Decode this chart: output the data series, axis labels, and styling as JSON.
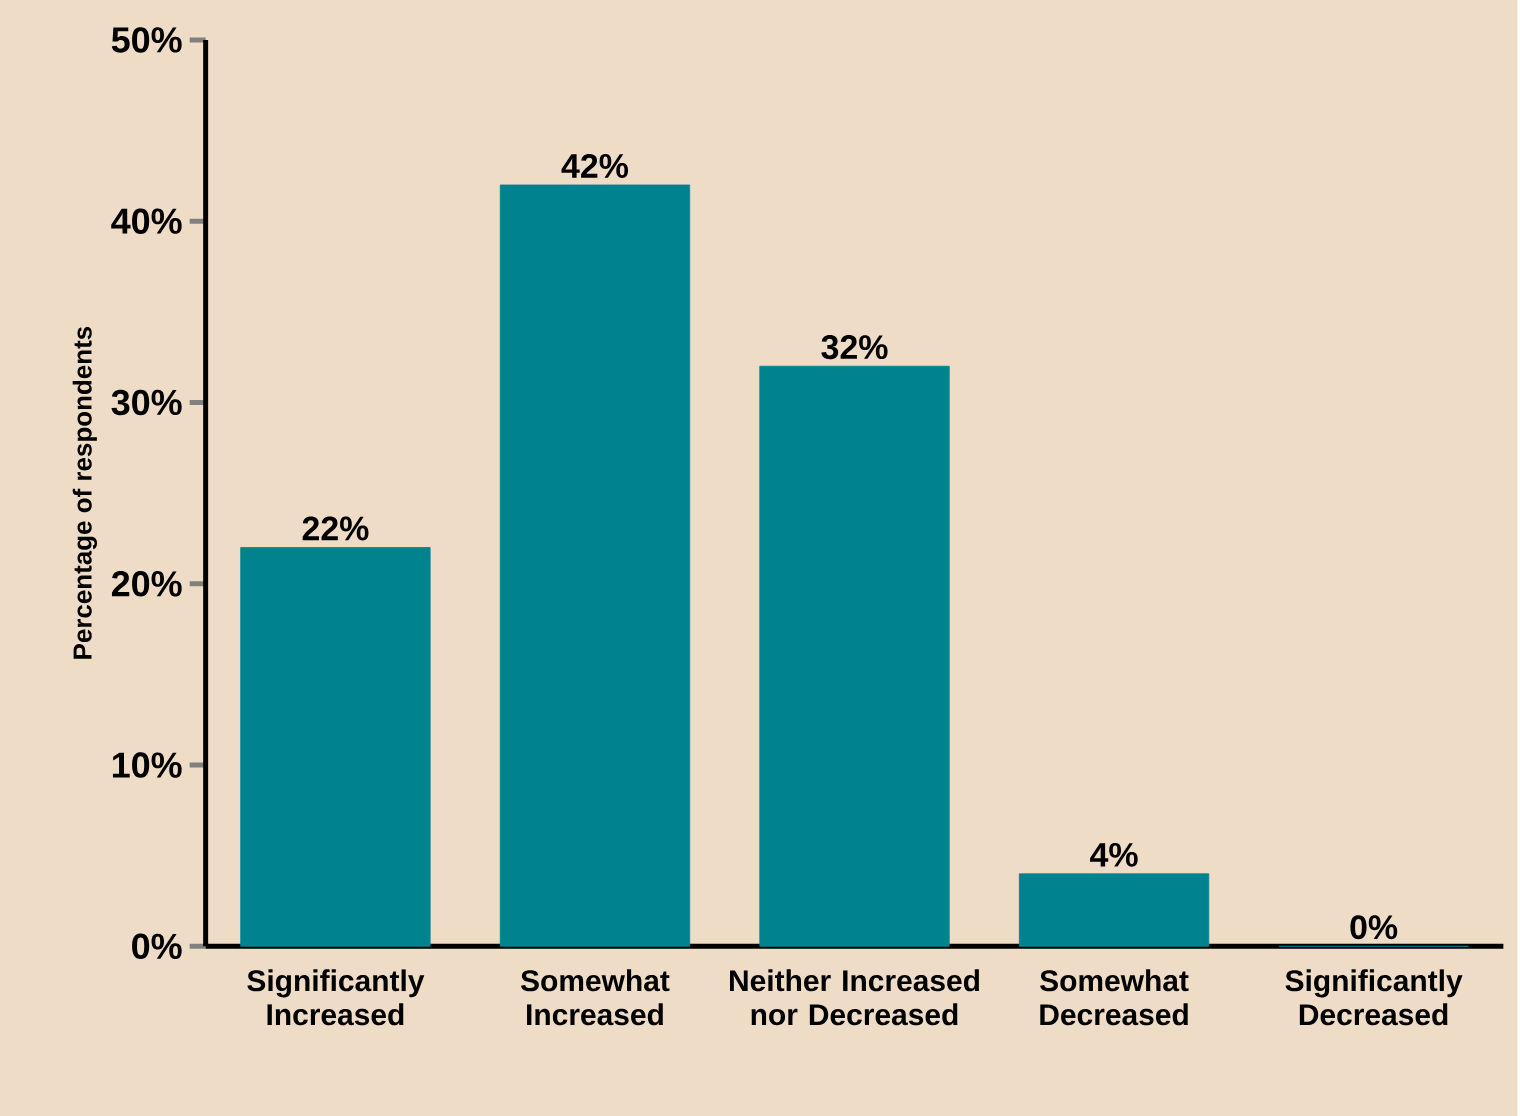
{
  "chart_data": {
    "type": "bar",
    "ylabel": "Percentage of respondents",
    "categories": [
      "Significantly Increased",
      "Somewhat Increased",
      "Neither Increased nor Decreased",
      "Somewhat Decreased",
      "Significantly Decreased"
    ],
    "values": [
      22,
      42,
      32,
      4,
      0
    ],
    "value_labels": [
      "22%",
      "42%",
      "32%",
      "4%",
      "0%"
    ],
    "color": "#00838f",
    "ylim": [
      0,
      50
    ],
    "yticks": [
      {
        "value": 0,
        "label": "0%"
      },
      {
        "value": 10,
        "label": "10%"
      },
      {
        "value": 20,
        "label": "20%"
      },
      {
        "value": 30,
        "label": "30%"
      },
      {
        "value": 40,
        "label": "40%"
      },
      {
        "value": 50,
        "label": "50%"
      }
    ],
    "grid": false
  }
}
